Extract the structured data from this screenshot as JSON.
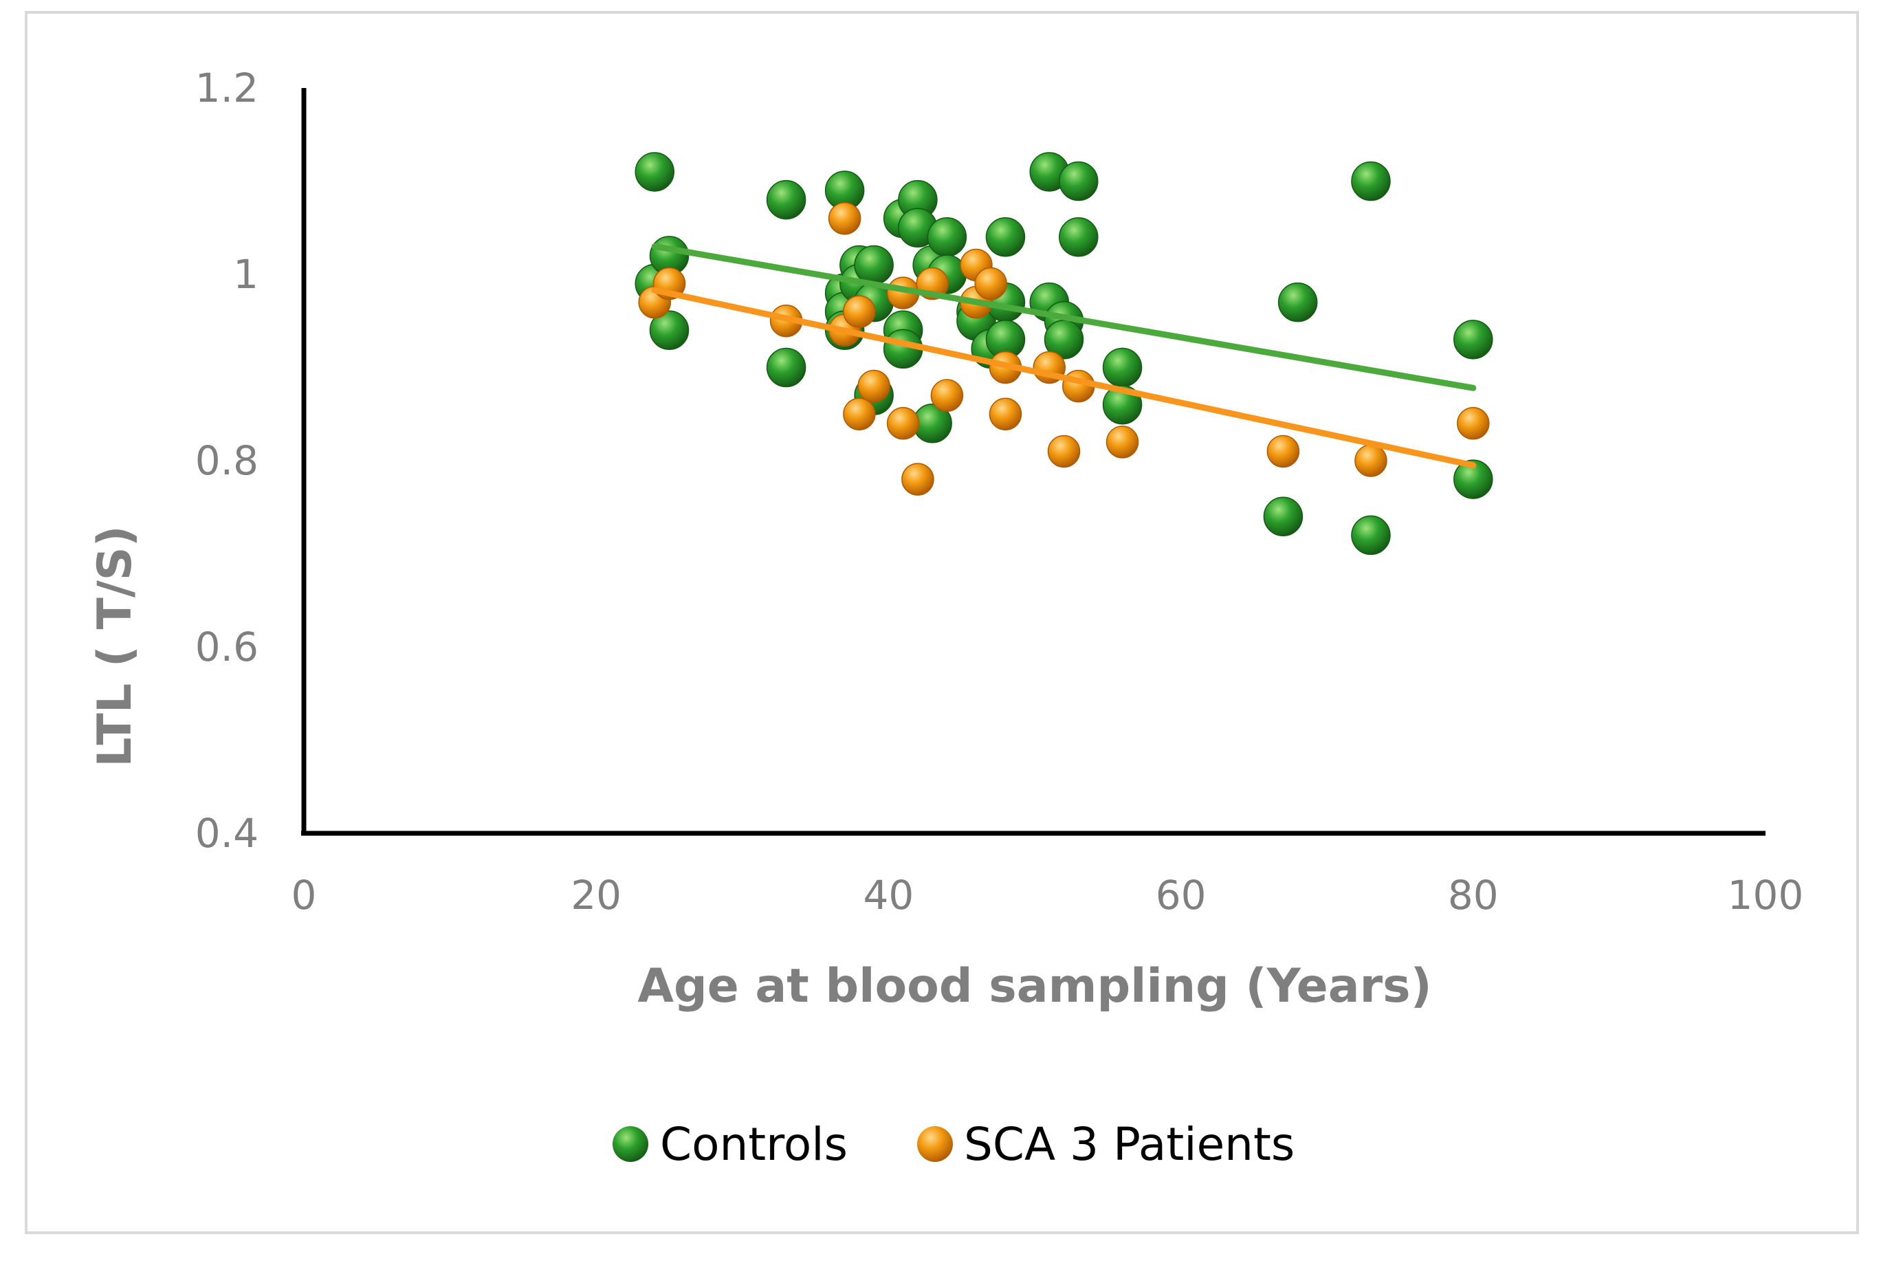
{
  "chart_data": {
    "type": "scatter",
    "title": "",
    "xlabel": "Age at blood sampling (Years)",
    "ylabel": "LTL ( T/S)",
    "xlim": [
      0,
      100
    ],
    "ylim": [
      0.4,
      1.2
    ],
    "xticks": [
      0,
      20,
      40,
      60,
      80,
      100
    ],
    "yticks": [
      0.4,
      0.6,
      0.8,
      1,
      1.2
    ],
    "xtick_labels": [
      "0",
      "20",
      "40",
      "60",
      "80",
      "100"
    ],
    "ytick_labels": [
      "0.4",
      "0.6",
      "0.8",
      "1",
      "1.2"
    ],
    "grid": false,
    "legend_position": "bottom",
    "series": [
      {
        "name": "Controls",
        "color": "#2ca02c",
        "highlight": "#9be37a",
        "shade": "#145a14",
        "trendline_color": "#4ca93c",
        "trendline": {
          "x": [
            24,
            80
          ],
          "y": [
            1.03,
            0.878
          ]
        },
        "points": [
          [
            24,
            1.11
          ],
          [
            24,
            0.99
          ],
          [
            25,
            1.02
          ],
          [
            25,
            0.94
          ],
          [
            33,
            1.08
          ],
          [
            33,
            0.9
          ],
          [
            37,
            1.09
          ],
          [
            37,
            0.98
          ],
          [
            37,
            0.96
          ],
          [
            37,
            0.94
          ],
          [
            38,
            1.01
          ],
          [
            38,
            0.99
          ],
          [
            39,
            1.01
          ],
          [
            39,
            0.97
          ],
          [
            39,
            0.87
          ],
          [
            41,
            1.06
          ],
          [
            41,
            0.94
          ],
          [
            41,
            0.92
          ],
          [
            42,
            1.08
          ],
          [
            42,
            1.05
          ],
          [
            43,
            1.01
          ],
          [
            43,
            0.84
          ],
          [
            44,
            1.04
          ],
          [
            44,
            1.0
          ],
          [
            46,
            0.96
          ],
          [
            46,
            0.95
          ],
          [
            47,
            0.92
          ],
          [
            48,
            1.04
          ],
          [
            48,
            0.97
          ],
          [
            48,
            0.93
          ],
          [
            51,
            1.11
          ],
          [
            51,
            0.97
          ],
          [
            52,
            0.95
          ],
          [
            52,
            0.93
          ],
          [
            53,
            1.1
          ],
          [
            53,
            1.04
          ],
          [
            56,
            0.9
          ],
          [
            56,
            0.86
          ],
          [
            67,
            0.74
          ],
          [
            68,
            0.97
          ],
          [
            73,
            1.1
          ],
          [
            73,
            0.72
          ],
          [
            80,
            0.93
          ],
          [
            80,
            0.78
          ]
        ]
      },
      {
        "name": "SCA 3 Patients",
        "color": "#f39a12",
        "highlight": "#ffd98a",
        "shade": "#b05a00",
        "trendline_color": "#f7951d",
        "trendline": {
          "x": [
            24,
            80
          ],
          "y": [
            0.983,
            0.795
          ]
        },
        "points": [
          [
            24,
            0.97
          ],
          [
            25,
            0.99
          ],
          [
            33,
            0.95
          ],
          [
            37,
            1.06
          ],
          [
            37,
            0.94
          ],
          [
            38,
            0.96
          ],
          [
            38,
            0.85
          ],
          [
            39,
            0.88
          ],
          [
            41,
            0.98
          ],
          [
            41,
            0.84
          ],
          [
            42,
            0.78
          ],
          [
            43,
            0.99
          ],
          [
            44,
            0.87
          ],
          [
            46,
            1.01
          ],
          [
            46,
            0.97
          ],
          [
            47,
            0.99
          ],
          [
            48,
            0.9
          ],
          [
            48,
            0.85
          ],
          [
            51,
            0.9
          ],
          [
            52,
            0.81
          ],
          [
            53,
            0.88
          ],
          [
            56,
            0.82
          ],
          [
            67,
            0.81
          ],
          [
            73,
            0.8
          ],
          [
            80,
            0.84
          ]
        ]
      }
    ]
  }
}
